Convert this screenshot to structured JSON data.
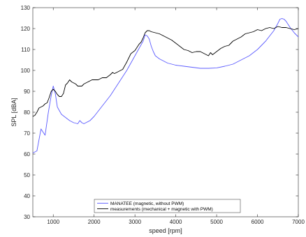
{
  "chart_data": {
    "type": "line",
    "title": "",
    "xlabel": "speed [rpm]",
    "ylabel": "SPL [dBA]",
    "xlim": [
      500,
      7000
    ],
    "ylim": [
      30,
      130
    ],
    "xticks": [
      1000,
      2000,
      3000,
      4000,
      5000,
      6000,
      7000
    ],
    "yticks": [
      30,
      40,
      50,
      60,
      70,
      80,
      90,
      100,
      110,
      120,
      130
    ],
    "grid": false,
    "legend_position": "bottom-center",
    "series": [
      {
        "name": "MANATEE (magnetic, without PWM)",
        "color": "#5b5bff",
        "x": [
          500,
          600,
          700,
          800,
          880,
          950,
          1000,
          1050,
          1100,
          1200,
          1300,
          1400,
          1500,
          1600,
          1650,
          1700,
          1750,
          1800,
          1900,
          2000,
          2100,
          2200,
          2300,
          2400,
          2500,
          2600,
          2700,
          2800,
          2900,
          3000,
          3100,
          3200,
          3250,
          3300,
          3350,
          3400,
          3450,
          3500,
          3600,
          3700,
          3800,
          3900,
          4000,
          4200,
          4400,
          4600,
          4800,
          5000,
          5200,
          5400,
          5600,
          5800,
          6000,
          6200,
          6400,
          6500,
          6550,
          6600,
          6650,
          6700,
          6750,
          6800,
          6900,
          7000
        ],
        "values": [
          60.5,
          61.5,
          72,
          69,
          80,
          88,
          92.5,
          89,
          82.5,
          79,
          77.5,
          76,
          75,
          74.5,
          76,
          75,
          74.5,
          75,
          76,
          78,
          80.5,
          83,
          85.5,
          88,
          91,
          94,
          97,
          100,
          103.5,
          107,
          110.5,
          114,
          117,
          116.5,
          115,
          111.5,
          109,
          107,
          105.5,
          104.5,
          103.5,
          103,
          102.5,
          102,
          101.5,
          101,
          101,
          101.2,
          102,
          103,
          105,
          107,
          110,
          114,
          119,
          122.5,
          124.5,
          124.8,
          124.5,
          123.5,
          122,
          120.5,
          118,
          116
        ]
      },
      {
        "name": "measurements (mechanical + magnetic with PWM)",
        "color": "#000000",
        "x": [
          500,
          550,
          600,
          650,
          700,
          750,
          800,
          850,
          900,
          950,
          1000,
          1050,
          1100,
          1150,
          1200,
          1250,
          1300,
          1350,
          1400,
          1450,
          1500,
          1550,
          1600,
          1650,
          1700,
          1750,
          1800,
          1850,
          1900,
          1950,
          2000,
          2100,
          2200,
          2300,
          2400,
          2450,
          2500,
          2550,
          2600,
          2700,
          2800,
          2900,
          3000,
          3100,
          3150,
          3200,
          3250,
          3300,
          3350,
          3400,
          3500,
          3600,
          3700,
          3800,
          3900,
          4000,
          4100,
          4200,
          4300,
          4400,
          4500,
          4600,
          4700,
          4800,
          4850,
          4900,
          5000,
          5100,
          5200,
          5300,
          5400,
          5500,
          5600,
          5700,
          5800,
          5900,
          6000,
          6100,
          6200,
          6300,
          6400,
          6500,
          6600,
          6700,
          6800,
          6900,
          7000
        ],
        "values": [
          78,
          78.5,
          80,
          82,
          82.5,
          83,
          84,
          84.5,
          87,
          90,
          91,
          90,
          88.5,
          87.5,
          87.5,
          89,
          93,
          94,
          95.5,
          94.5,
          94,
          93.5,
          92.5,
          92.5,
          92.5,
          93.5,
          94,
          94.5,
          95,
          95.5,
          95.5,
          95.5,
          96.5,
          96.5,
          98,
          99,
          98.5,
          99,
          99.5,
          100.5,
          104,
          108,
          109.5,
          112.5,
          113.5,
          115.5,
          118,
          119,
          119,
          118.5,
          118,
          117.5,
          116.5,
          115.5,
          114.5,
          113,
          111.5,
          110,
          109.5,
          108.5,
          109,
          109,
          108,
          107,
          108.5,
          107.5,
          109,
          110.5,
          111.5,
          112,
          114,
          115,
          116,
          117.5,
          118,
          118.5,
          119.5,
          119,
          120,
          120.5,
          120,
          121,
          120.5,
          120.5,
          120,
          119.5,
          120
        ]
      }
    ]
  }
}
